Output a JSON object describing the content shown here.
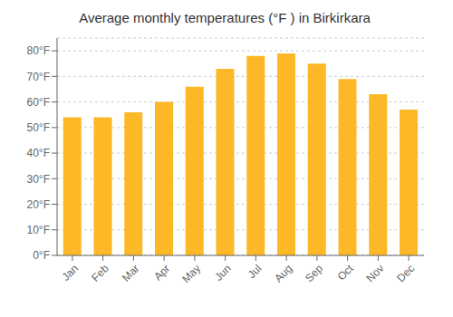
{
  "chart_data": {
    "type": "bar",
    "title": "Average monthly temperatures (°F ) in Birkirkara",
    "categories": [
      "Jan",
      "Feb",
      "Mar",
      "Apr",
      "May",
      "Jun",
      "Jul",
      "Aug",
      "Sep",
      "Oct",
      "Nov",
      "Dec"
    ],
    "values": [
      54,
      54,
      56,
      60,
      66,
      73,
      78,
      79,
      75,
      69,
      63,
      57
    ],
    "color": "#FDB827",
    "ylim": [
      0,
      85
    ],
    "yticks": [
      {
        "value": 0,
        "label": "0°F"
      },
      {
        "value": 10,
        "label": "10°F"
      },
      {
        "value": 20,
        "label": "20°F"
      },
      {
        "value": 30,
        "label": "30°F"
      },
      {
        "value": 40,
        "label": "40°F"
      },
      {
        "value": 50,
        "label": "50°F"
      },
      {
        "value": 60,
        "label": "60°F"
      },
      {
        "value": 70,
        "label": "70°F"
      },
      {
        "value": 80,
        "label": "80°F"
      }
    ],
    "grid": true
  }
}
